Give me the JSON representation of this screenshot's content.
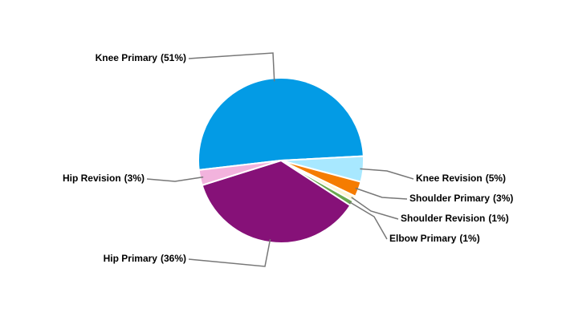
{
  "chart_data": {
    "type": "pie",
    "categories": [
      "Knee Primary",
      "Knee Revision",
      "Shoulder Primary",
      "Shoulder Revision",
      "Elbow Primary",
      "Hip Primary",
      "Hip Revision"
    ],
    "values": [
      51,
      5,
      3,
      1,
      1,
      36,
      3
    ],
    "value_labels": [
      "(51%)",
      "(5%)",
      "(3%)",
      "(1%)",
      "(1%)",
      "(36%)",
      "(3%)"
    ],
    "colors": [
      "#039be5",
      "#a8e8ff",
      "#f57c00",
      "#fff6d5",
      "#6aa84f",
      "#861178",
      "#f2b3dd"
    ]
  }
}
